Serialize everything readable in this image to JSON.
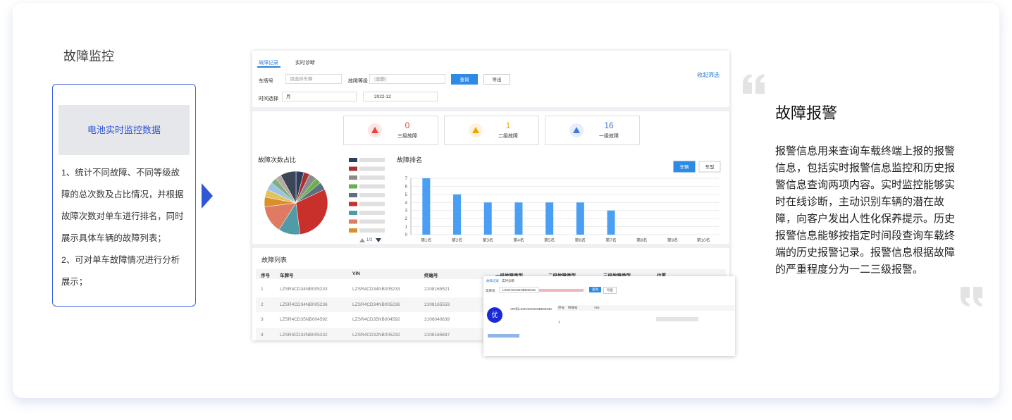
{
  "sidebar": {
    "title": "故障监控",
    "box_title": "电池实时监控数据",
    "items": [
      "1、统计不同故障、不同等级故障的总次数及占比情况，并根据故障次数对单车进行排名，同时展示具体车辆的故障列表；",
      "2、可对单车故障情况进行分析展示；"
    ]
  },
  "app": {
    "tabs": [
      "故障记录",
      "实时诊断"
    ],
    "collapse": "收起筛选",
    "filters": {
      "plate_label": "车牌号",
      "plate_placeholder": "请选择车辆",
      "level_label": "故障等级",
      "level_value": "全部",
      "query": "查询",
      "export": "导出",
      "time_label": "时间选择",
      "time_unit": "月",
      "date": "2022-12"
    },
    "stats": [
      {
        "value": 0,
        "label": "三级故障",
        "color": "#e8453c"
      },
      {
        "value": 1,
        "label": "二级故障",
        "color": "#f0a500"
      },
      {
        "value": 16,
        "label": "一级故障",
        "color": "#3b7dd8"
      }
    ],
    "ranking_toggle": [
      "车辆",
      "车型"
    ],
    "pagination": "1/3",
    "table": {
      "title": "故障列表",
      "headers": [
        "序号",
        "车牌号",
        "VIN",
        "终端号",
        "一级故障类型",
        "二级故障类型",
        "三级故障类型",
        "位置"
      ],
      "rows": [
        [
          "1",
          "LZSR4CD34NB005233",
          "LZSR4CD34NB005233",
          "2108165521"
        ],
        [
          "2",
          "LZSR4CD34NB005236",
          "LZSR4CD34NB005236",
          "2108165559"
        ],
        [
          "3",
          "LZSR4CD35NB004592",
          "LZSR4CD35NB004592",
          "2108040639"
        ],
        [
          "4",
          "LZSR4CD32NB005232",
          "LZSR4CD32NB005232",
          "2108165697"
        ]
      ]
    }
  },
  "detail": {
    "tabs": [
      "故障记录",
      "实时诊断"
    ],
    "plate_label": "车牌号",
    "plate_value": "LZSR4CD34NB005233",
    "query": "查询",
    "export": "导出",
    "badge": "优",
    "vin": "VIN码LZSR4CD34NB005233",
    "headers": [
      "序号",
      "终端号",
      "VIN"
    ],
    "row": [
      "1"
    ]
  },
  "description": {
    "title": "故障报警",
    "text": "报警信息用来查询车载终端上报的报警信息，包括实时报警信息监控和历史报警信息查询两项内容。实时监控能够实时在线诊断，主动识别车辆的潜在故障，向客户发出人性化保养提示。历史报警信息能够按指定时间段查询车载终端的历史报警记录。报警信息根据故障的严重程度分为一二三级报警。"
  },
  "chart_data": [
    {
      "type": "pie",
      "title": "故障次数占比",
      "values": [
        4,
        3,
        4,
        3,
        4,
        30,
        11,
        14,
        5,
        4,
        4,
        3,
        3,
        8
      ],
      "colors": [
        "#2f3e5c",
        "#a83232",
        "#8c8c8c",
        "#6ab04c",
        "#5d6f80",
        "#c9302c",
        "#4f9ca6",
        "#e07b63",
        "#d98f2b",
        "#e0c35a",
        "#9cc3e6",
        "#7fae7f",
        "#b7a8a2",
        "#3c4656"
      ]
    },
    {
      "type": "bar",
      "title": "故障排名",
      "categories": [
        "第1名",
        "第2名",
        "第3名",
        "第4名",
        "第5名",
        "第6名",
        "第7名",
        "第8名",
        "第9名",
        "第10名"
      ],
      "values": [
        7,
        5,
        4,
        4,
        4,
        4,
        3,
        0,
        0,
        0
      ],
      "color": "#4a9ff5",
      "ylim": [
        0,
        7
      ],
      "yticks": [
        0,
        1,
        2,
        3,
        4,
        5,
        6,
        7
      ],
      "grid": true
    }
  ]
}
